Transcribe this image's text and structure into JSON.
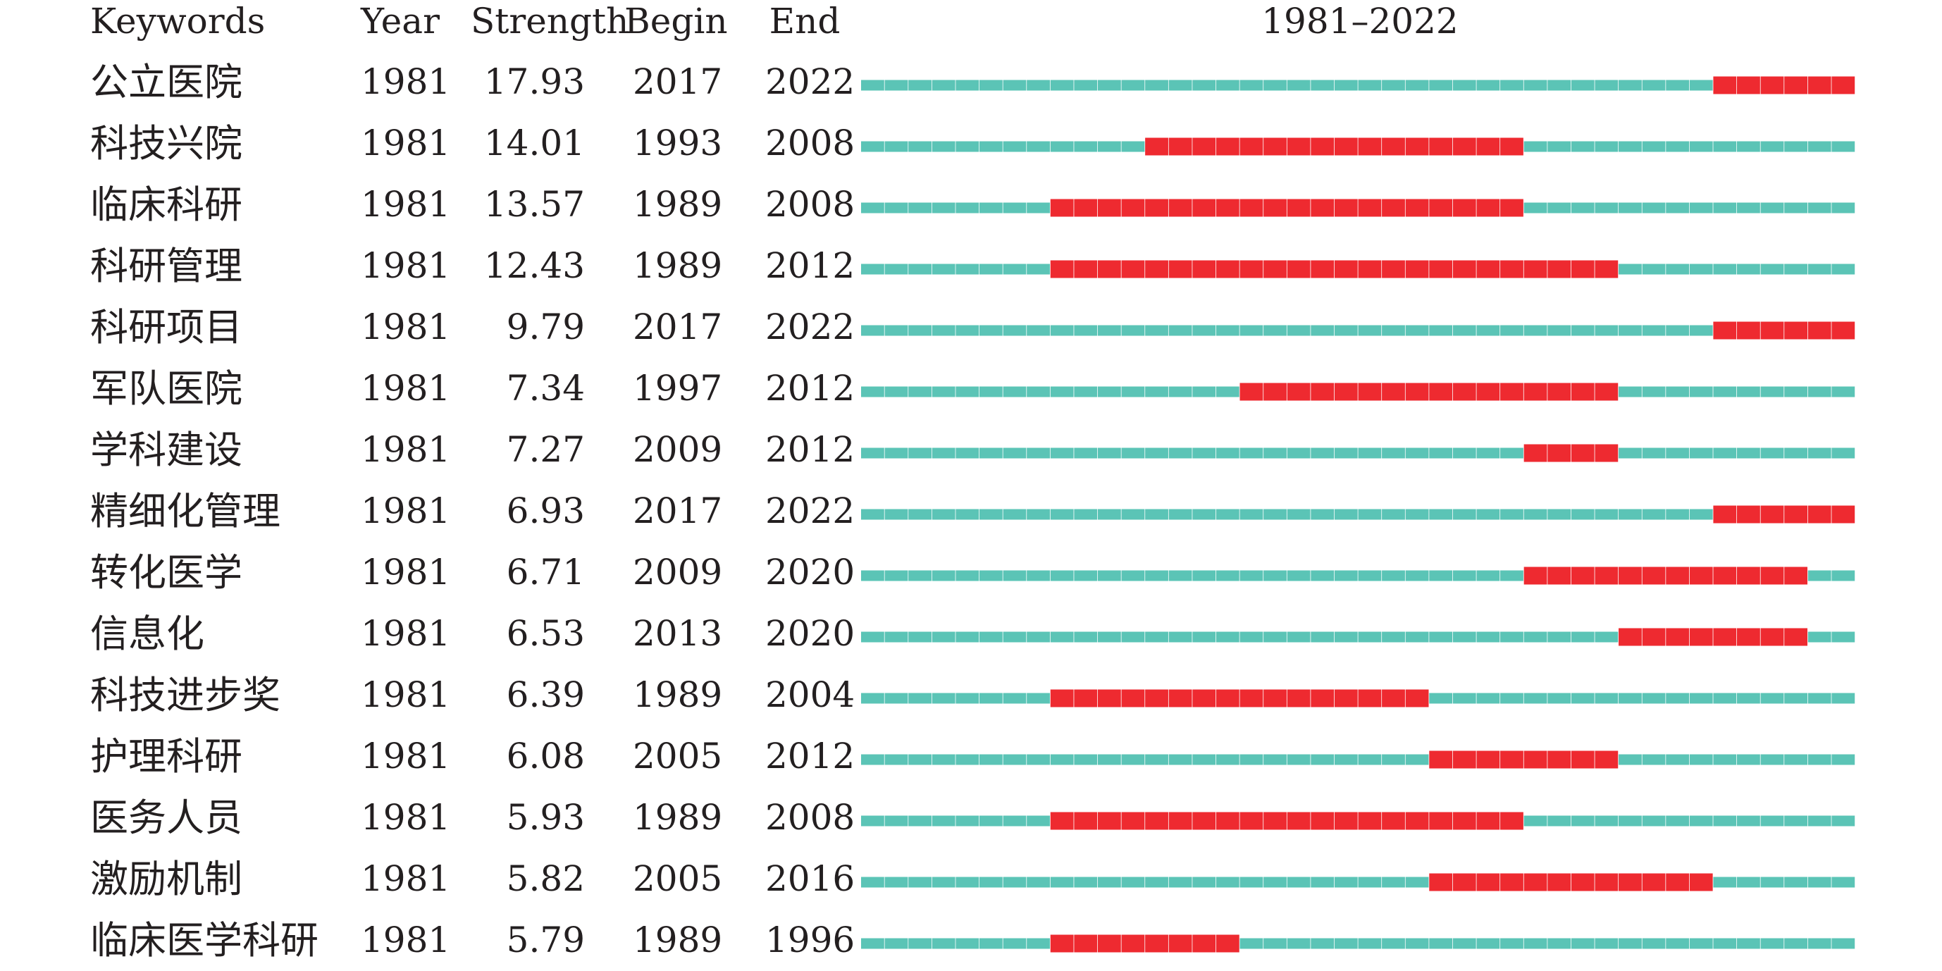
{
  "headers": {
    "keywords": "Keywords",
    "year": "Year",
    "strength": "Strength",
    "begin": "Begin",
    "end": "End",
    "range": "1981–2022"
  },
  "colors": {
    "baseline": "#5bc4b6",
    "burst": "#ee2a30",
    "text": "#231f20"
  },
  "chart_data": {
    "type": "table",
    "x_range": [
      1981,
      2022
    ],
    "columns": [
      "Keywords",
      "Year",
      "Strength",
      "Begin",
      "End",
      "1981–2022"
    ],
    "rows": [
      {
        "keyword": "公立医院",
        "year": "1981",
        "strength": "17.93",
        "begin": "2017",
        "end": "2022"
      },
      {
        "keyword": "科技兴院",
        "year": "1981",
        "strength": "14.01",
        "begin": "1993",
        "end": "2008"
      },
      {
        "keyword": "临床科研",
        "year": "1981",
        "strength": "13.57",
        "begin": "1989",
        "end": "2008"
      },
      {
        "keyword": "科研管理",
        "year": "1981",
        "strength": "12.43",
        "begin": "1989",
        "end": "2012"
      },
      {
        "keyword": "科研项目",
        "year": "1981",
        "strength": "9.79",
        "begin": "2017",
        "end": "2022"
      },
      {
        "keyword": "军队医院",
        "year": "1981",
        "strength": "7.34",
        "begin": "1997",
        "end": "2012"
      },
      {
        "keyword": "学科建设",
        "year": "1981",
        "strength": "7.27",
        "begin": "2009",
        "end": "2012"
      },
      {
        "keyword": "精细化管理",
        "year": "1981",
        "strength": "6.93",
        "begin": "2017",
        "end": "2022"
      },
      {
        "keyword": "转化医学",
        "year": "1981",
        "strength": "6.71",
        "begin": "2009",
        "end": "2020"
      },
      {
        "keyword": "信息化",
        "year": "1981",
        "strength": "6.53",
        "begin": "2013",
        "end": "2020"
      },
      {
        "keyword": "科技进步奖",
        "year": "1981",
        "strength": "6.39",
        "begin": "1989",
        "end": "2004"
      },
      {
        "keyword": "护理科研",
        "year": "1981",
        "strength": "6.08",
        "begin": "2005",
        "end": "2012"
      },
      {
        "keyword": "医务人员",
        "year": "1981",
        "strength": "5.93",
        "begin": "1989",
        "end": "2008"
      },
      {
        "keyword": "激励机制",
        "year": "1981",
        "strength": "5.82",
        "begin": "2005",
        "end": "2016"
      },
      {
        "keyword": "临床医学科研",
        "year": "1981",
        "strength": "5.79",
        "begin": "1989",
        "end": "1996"
      }
    ]
  }
}
